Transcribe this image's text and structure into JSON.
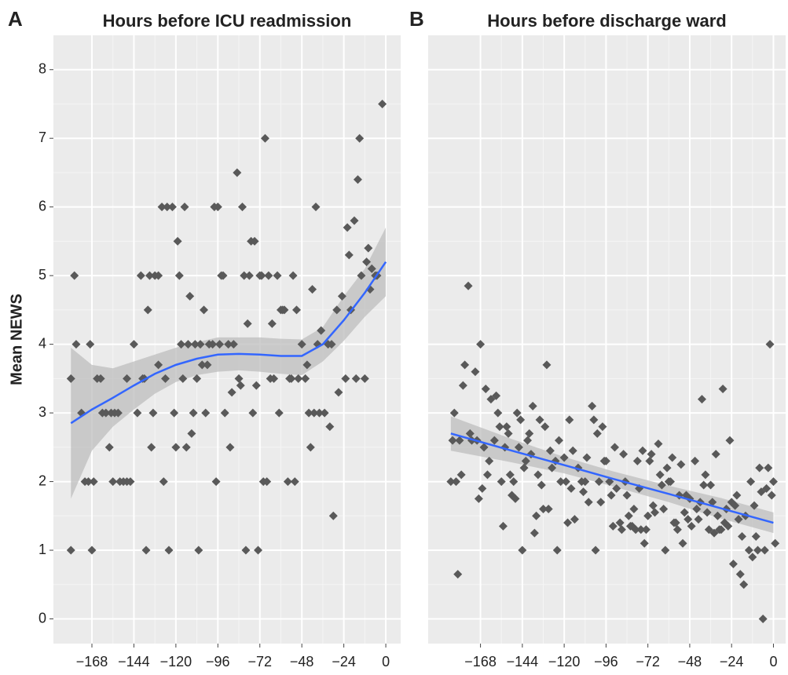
{
  "chart_data": [
    {
      "type": "scatter",
      "panel_label": "A",
      "title": "Hours before ICU readmission",
      "y_label": "Mean NEWS",
      "xlim": [
        -190,
        8.5
      ],
      "ylim": [
        -0.36,
        8.5
      ],
      "xticks": [
        {
          "value": -168,
          "label": "−168"
        },
        {
          "value": -144,
          "label": "−144"
        },
        {
          "value": -120,
          "label": "−120"
        },
        {
          "value": -96,
          "label": "−96"
        },
        {
          "value": -72,
          "label": "−72"
        },
        {
          "value": -48,
          "label": "−48"
        },
        {
          "value": -24,
          "label": "−24"
        },
        0
      ],
      "yticks": [
        0,
        1,
        2,
        3,
        4,
        5,
        6,
        7,
        8
      ],
      "ytick_labels": true,
      "grid": true,
      "color": "#595959",
      "x": [
        -180,
        -180,
        -178,
        -177,
        -174,
        -172,
        -170,
        -169,
        -168,
        -167,
        -165,
        -163,
        -162,
        -160,
        -158,
        -157,
        -156,
        -155,
        -153,
        -152,
        -150,
        -148,
        -148,
        -146,
        -144,
        -142,
        -140,
        -139,
        -138,
        -137,
        -136,
        -135,
        -134,
        -133,
        -132,
        -130,
        -130,
        -128,
        -127,
        -126,
        -125,
        -124,
        -122,
        -121,
        -120,
        -119,
        -118,
        -117,
        -116,
        -115,
        -114,
        -113,
        -112,
        -111,
        -110,
        -109,
        -108,
        -107,
        -106,
        -105,
        -104,
        -103,
        -102,
        -101,
        -99,
        -98,
        -97,
        -96,
        -95,
        -94,
        -93,
        -92,
        -90,
        -89,
        -88,
        -87,
        -85,
        -84,
        -83,
        -82,
        -81,
        -80,
        -79,
        -78,
        -77,
        -76,
        -75,
        -74,
        -73,
        -72,
        -71,
        -70,
        -69,
        -68,
        -67,
        -66,
        -65,
        -64,
        -62,
        -61,
        -60,
        -59,
        -58,
        -56,
        -55,
        -54,
        -53,
        -52,
        -51,
        -50,
        -48,
        -46,
        -45,
        -44,
        -43,
        -42,
        -41,
        -40,
        -39,
        -38,
        -37,
        -35,
        -33,
        -32,
        -31,
        -30,
        -28,
        -27,
        -25,
        -23,
        -22,
        -21,
        -20,
        -18,
        -17,
        -16,
        -15,
        -14,
        -12,
        -11,
        -10,
        -9,
        -8,
        -6,
        -5,
        -2
      ],
      "values": [
        1.0,
        3.5,
        5.0,
        4.0,
        3.0,
        2.0,
        2.0,
        4.0,
        1.0,
        2.0,
        3.5,
        3.5,
        3.0,
        3.0,
        2.5,
        3.0,
        2.0,
        3.0,
        3.0,
        2.0,
        2.0,
        3.5,
        2.0,
        2.0,
        4.0,
        3.0,
        5.0,
        3.5,
        3.5,
        1.0,
        4.5,
        5.0,
        2.5,
        3.0,
        5.0,
        5.0,
        3.7,
        6.0,
        2.0,
        3.5,
        6.0,
        1.0,
        6.0,
        3.0,
        2.5,
        5.5,
        5.0,
        4.0,
        3.5,
        6.0,
        2.5,
        4.0,
        4.7,
        2.7,
        3.0,
        4.0,
        3.5,
        1.0,
        4.0,
        3.7,
        4.5,
        3.0,
        3.7,
        4.0,
        4.0,
        6.0,
        2.0,
        6.0,
        4.0,
        5.0,
        5.0,
        3.0,
        4.0,
        2.5,
        3.3,
        4.0,
        6.5,
        3.5,
        3.4,
        6.0,
        5.0,
        1.0,
        4.3,
        5.0,
        5.5,
        3.0,
        5.5,
        3.4,
        1.0,
        5.0,
        5.0,
        2.0,
        7.0,
        2.0,
        5.0,
        3.5,
        4.3,
        3.5,
        5.0,
        3.0,
        4.5,
        4.5,
        4.5,
        2.0,
        3.5,
        3.5,
        5.0,
        2.0,
        4.5,
        3.5,
        4.0,
        3.5,
        3.7,
        3.0,
        2.5,
        4.8,
        3.0,
        6.0,
        4.0,
        3.0,
        4.2,
        3.0,
        4.0,
        2.8,
        4.0,
        1.5,
        4.5,
        3.3,
        4.7,
        3.5,
        5.7,
        5.3,
        4.5,
        5.8,
        3.5,
        6.4,
        7.0,
        5.0,
        3.5,
        5.2,
        5.4,
        4.8,
        5.1,
        5.0,
        5.0,
        7.5
      ],
      "fit": {
        "color": "#3366ff",
        "band_color": "#bdbdbd",
        "x": [
          -180,
          -168,
          -156,
          -144,
          -132,
          -120,
          -108,
          -96,
          -84,
          -72,
          -60,
          -48,
          -36,
          -24,
          -12,
          0
        ],
        "values": [
          2.85,
          3.05,
          3.22,
          3.4,
          3.57,
          3.7,
          3.79,
          3.85,
          3.86,
          3.85,
          3.83,
          3.83,
          4.0,
          4.35,
          4.75,
          5.2
        ],
        "lower": [
          1.75,
          2.45,
          2.8,
          3.05,
          3.28,
          3.45,
          3.55,
          3.6,
          3.62,
          3.6,
          3.57,
          3.55,
          3.75,
          4.05,
          4.4,
          4.7
        ],
        "upper": [
          3.95,
          3.7,
          3.65,
          3.75,
          3.85,
          3.95,
          4.03,
          4.1,
          4.1,
          4.1,
          4.08,
          4.07,
          4.25,
          4.7,
          5.1,
          5.7
        ]
      }
    },
    {
      "type": "scatter",
      "panel_label": "B",
      "title": "Hours before discharge ward",
      "xlim": [
        -198,
        7
      ],
      "ylim": [
        -0.36,
        8.5
      ],
      "xticks": [
        {
          "value": -168,
          "label": "−168"
        },
        {
          "value": -144,
          "label": "−144"
        },
        {
          "value": -120,
          "label": "−120"
        },
        {
          "value": -96,
          "label": "−96"
        },
        {
          "value": -72,
          "label": "−72"
        },
        {
          "value": -48,
          "label": "−48"
        },
        {
          "value": -24,
          "label": "−24"
        },
        0
      ],
      "yticks": [
        0,
        1,
        2,
        3,
        4,
        5,
        6,
        7,
        8
      ],
      "ytick_labels": false,
      "grid": true,
      "color": "#595959",
      "x": [
        -185,
        -184,
        -183,
        -182,
        -181,
        -180,
        -179,
        -178,
        -177,
        -175,
        -174,
        -173,
        -171,
        -170,
        -169,
        -168,
        -167,
        -166,
        -165,
        -164,
        -163,
        -162,
        -160,
        -159,
        -158,
        -157,
        -156,
        -155,
        -154,
        -153,
        -152,
        -151,
        -150,
        -149,
        -148,
        -147,
        -146,
        -145,
        -144,
        -143,
        -142,
        -141,
        -140,
        -139,
        -138,
        -137,
        -136,
        -135,
        -134,
        -133,
        -132,
        -131,
        -130,
        -129,
        -128,
        -127,
        -125,
        -124,
        -123,
        -122,
        -120,
        -119,
        -118,
        -117,
        -116,
        -115,
        -114,
        -112,
        -110,
        -109,
        -108,
        -107,
        -106,
        -104,
        -103,
        -102,
        -101,
        -100,
        -99,
        -98,
        -97,
        -96,
        -94,
        -93,
        -92,
        -91,
        -90,
        -88,
        -87,
        -86,
        -85,
        -84,
        -83,
        -82,
        -81,
        -80,
        -79,
        -78,
        -77,
        -76,
        -75,
        -74,
        -73,
        -72,
        -71,
        -70,
        -69,
        -68,
        -66,
        -65,
        -64,
        -63,
        -62,
        -61,
        -60,
        -59,
        -58,
        -57,
        -56,
        -55,
        -54,
        -53,
        -52,
        -51,
        -50,
        -49,
        -48,
        -47,
        -45,
        -44,
        -43,
        -42,
        -41,
        -40,
        -39,
        -38,
        -37,
        -36,
        -35,
        -34,
        -33,
        -32,
        -31,
        -30,
        -29,
        -28,
        -27,
        -26,
        -25,
        -24,
        -23,
        -22,
        -21,
        -20,
        -19,
        -18,
        -17,
        -16,
        -14,
        -13,
        -12,
        -11,
        -10,
        -9,
        -8,
        -7,
        -6,
        -5,
        -4,
        -3,
        -2,
        -1,
        0,
        1
      ],
      "values": [
        2.0,
        2.6,
        3.0,
        2.0,
        0.65,
        2.6,
        2.1,
        3.4,
        3.7,
        4.85,
        2.7,
        2.6,
        3.6,
        2.6,
        1.75,
        4.0,
        1.9,
        2.5,
        3.35,
        2.1,
        2.3,
        3.2,
        2.6,
        3.25,
        3.0,
        2.8,
        2.0,
        1.35,
        2.5,
        2.8,
        2.7,
        2.1,
        1.8,
        2.0,
        1.75,
        3.0,
        2.5,
        2.9,
        1.0,
        2.2,
        2.3,
        2.6,
        2.7,
        2.4,
        3.1,
        1.25,
        1.5,
        2.1,
        2.9,
        1.95,
        1.6,
        2.8,
        3.7,
        1.6,
        2.45,
        2.2,
        2.3,
        1.0,
        2.6,
        2.0,
        2.35,
        2.0,
        1.4,
        2.9,
        1.9,
        2.45,
        1.45,
        2.2,
        2.0,
        1.85,
        2.0,
        2.35,
        1.7,
        3.1,
        2.9,
        1.0,
        2.7,
        2.0,
        1.7,
        2.8,
        2.3,
        2.3,
        2.0,
        1.8,
        1.35,
        2.5,
        1.9,
        1.4,
        1.3,
        2.4,
        2.0,
        1.8,
        1.5,
        1.35,
        1.35,
        1.6,
        1.3,
        2.3,
        1.9,
        1.3,
        2.45,
        1.1,
        1.3,
        1.5,
        2.3,
        2.4,
        1.65,
        1.55,
        2.55,
        2.1,
        1.95,
        1.6,
        1.0,
        2.2,
        2.0,
        2.0,
        2.35,
        1.4,
        1.4,
        1.3,
        1.8,
        2.25,
        1.1,
        1.55,
        1.8,
        1.45,
        1.75,
        1.35,
        2.3,
        1.6,
        1.45,
        1.7,
        3.2,
        1.95,
        2.1,
        1.55,
        1.3,
        1.95,
        1.7,
        1.25,
        2.4,
        1.5,
        1.3,
        1.3,
        3.35,
        1.4,
        1.6,
        1.35,
        2.6,
        1.7,
        0.8,
        1.65,
        1.8,
        1.45,
        0.65,
        1.2,
        0.5,
        1.5,
        1.0,
        2.0,
        0.9,
        1.65,
        1.2,
        1.0,
        2.2,
        1.85,
        0.0,
        1.0,
        1.9,
        2.2,
        4.0,
        1.8,
        2.0,
        1.1
      ],
      "fit": {
        "color": "#3366ff",
        "band_color": "#bdbdbd",
        "x": [
          -185,
          -150,
          -120,
          -92,
          -60,
          -30,
          0
        ],
        "values": [
          2.7,
          2.45,
          2.24,
          2.04,
          1.82,
          1.61,
          1.4
        ],
        "lower": [
          2.45,
          2.28,
          2.12,
          1.93,
          1.7,
          1.46,
          1.25
        ],
        "upper": [
          2.95,
          2.62,
          2.36,
          2.15,
          1.94,
          1.76,
          1.55
        ]
      }
    }
  ]
}
